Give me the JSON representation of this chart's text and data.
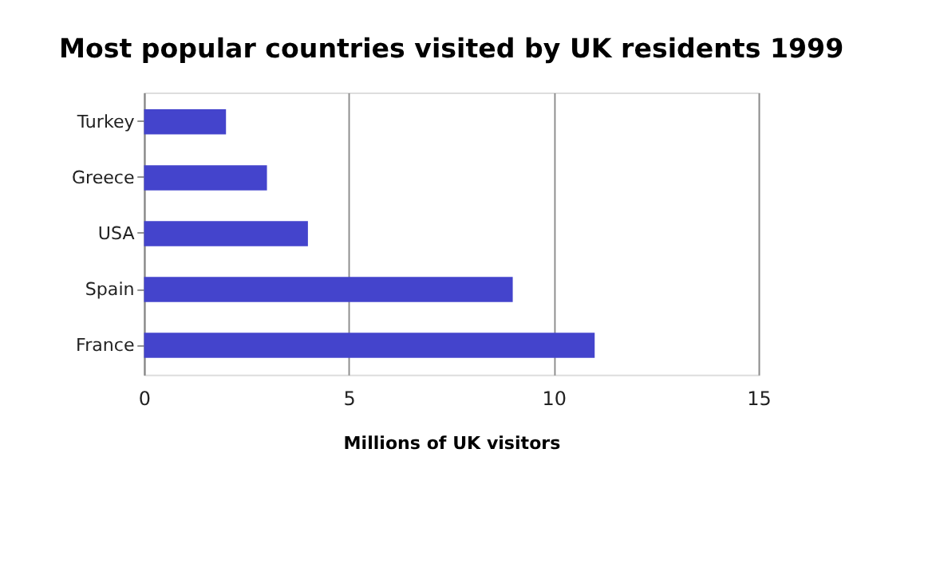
{
  "chart_data": {
    "type": "bar",
    "orientation": "horizontal",
    "title": "Most popular countries visited by UK residents 1999",
    "xlabel": "Millions of UK visitors",
    "categories": [
      "Turkey",
      "Greece",
      "USA",
      "Spain",
      "France"
    ],
    "values": [
      2,
      3,
      4,
      9,
      11
    ],
    "color": "#4444cc",
    "xlim": [
      0,
      15
    ],
    "xticks": [
      0,
      5,
      10,
      15
    ],
    "grid": "x"
  }
}
